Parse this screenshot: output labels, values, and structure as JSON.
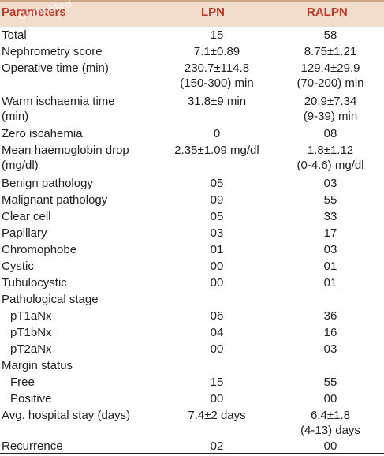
{
  "watermark": "GrowMed",
  "columns": [
    "Parameters",
    "LPN",
    "RALPN"
  ],
  "rows": [
    {
      "label": "Total",
      "lpn": "15",
      "ralpn": "58"
    },
    {
      "label": "Nephrometry score",
      "lpn": "7.1±0.89",
      "ralpn": "8.75±1.21"
    },
    {
      "label": "Operative time (min)",
      "lpn": "230.7±114.8",
      "ralpn": "129.4±29.9",
      "lpn2": "(150-300) min",
      "ralpn2": "(70-200) min"
    },
    {
      "label": "Warm ischaemia time",
      "label2": "(min)",
      "lpn": "31.8±9 min",
      "ralpn": "20.9±7.34",
      "ralpn2": "(9-39) min"
    },
    {
      "label": "Zero iscahemia",
      "lpn": "0",
      "ralpn": "08"
    },
    {
      "label": "Mean haemoglobin drop",
      "label2": "(mg/dl)",
      "lpn": "2.35±1.09 mg/dl",
      "ralpn": "1.8±1.12",
      "ralpn2": "(0-4.6) mg/dl"
    },
    {
      "label": "Benign pathology",
      "lpn": "05",
      "ralpn": "03"
    },
    {
      "label": "Malignant pathology",
      "lpn": "09",
      "ralpn": "55"
    },
    {
      "label": "Clear cell",
      "lpn": "05",
      "ralpn": "33"
    },
    {
      "label": "Papillary",
      "lpn": "03",
      "ralpn": "17"
    },
    {
      "label": "Chromophobe",
      "lpn": "01",
      "ralpn": "03"
    },
    {
      "label": "Cystic",
      "lpn": "00",
      "ralpn": "01"
    },
    {
      "label": "Tubulocystic",
      "lpn": "00",
      "ralpn": "01"
    },
    {
      "label": "Pathological stage",
      "lpn": "",
      "ralpn": ""
    },
    {
      "label": "pT1aNx",
      "lpn": "06",
      "ralpn": "36"
    },
    {
      "label": "pT1bNx",
      "lpn": "04",
      "ralpn": "16"
    },
    {
      "label": "pT2aNx",
      "lpn": "00",
      "ralpn": "03"
    },
    {
      "label": "Margin status",
      "lpn": "",
      "ralpn": ""
    },
    {
      "label": "Free",
      "lpn": "15",
      "ralpn": "55"
    },
    {
      "label": "Positive",
      "lpn": "00",
      "ralpn": "00"
    },
    {
      "label": "Avg. hospital stay (days)",
      "lpn": "7.4±2 days",
      "ralpn": "6.4±1.8",
      "ralpn2": "(4-13) days"
    },
    {
      "label": "Recurrence",
      "lpn": "02",
      "ralpn": "00"
    }
  ]
}
